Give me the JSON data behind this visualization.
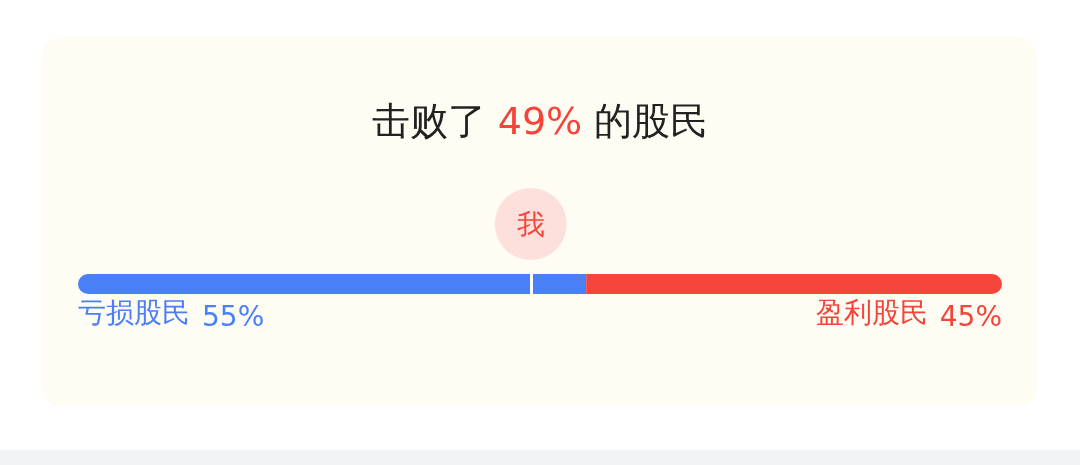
{
  "chart_data": {
    "type": "bar",
    "orientation": "horizontal",
    "stacked": true,
    "title": "击败了 49% 的股民",
    "categories": [
      null
    ],
    "series": [
      {
        "name": "亏损股民",
        "color": "#4a80f7",
        "values": [
          55
        ],
        "value_labels": [
          "55%"
        ]
      },
      {
        "name": "盈利股民",
        "color": "#f5443a",
        "values": [
          45
        ],
        "value_labels": [
          "45%"
        ]
      }
    ],
    "tick_labels": false,
    "grid": false,
    "legend": false,
    "ref_lines": [
      {
        "axis": "x",
        "value": 49,
        "label": "我",
        "color": "#ffffff"
      }
    ]
  }
}
